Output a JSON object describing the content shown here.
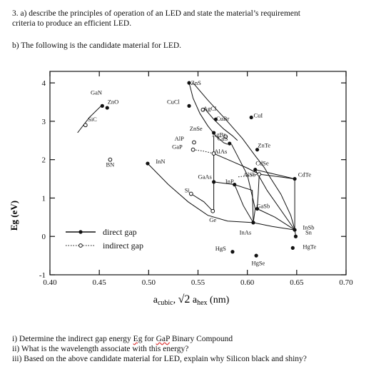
{
  "question": {
    "part_a_line1": "3.  a) describe the principles of operation of an LED and state the material’s requirement",
    "part_a_line2": "criteria to produce an efficient LED.",
    "part_b": "b) The following is the candidate material for LED."
  },
  "subquestions": {
    "i_prefix": "i)   Determine the indirect gap energy ",
    "i_eg": "Eg",
    "i_mid": " for ",
    "i_gap": "GaP",
    "i_suffix": " Binary Compound",
    "ii": "ii)  What is the wavelength associate with this energy?",
    "iii": "iii)  Based on the above candidate material for LED, explain why Silicon black and shiny?"
  },
  "colors": {
    "ink": "#111111",
    "underline": "#dd3333"
  },
  "chart_data": {
    "type": "scatter",
    "ylabel": "Eg (eV)",
    "xlabel_parts": {
      "a": "a",
      "cubic": "cubic",
      "sep": ", ",
      "rad": "√2",
      "a2": " a",
      "hex": "hex",
      "unit": " (nm)"
    },
    "xlim": [
      0.4,
      0.7
    ],
    "ylim": [
      -1,
      4.3
    ],
    "x_ticks": [
      {
        "v": 0.4,
        "label": "0.40"
      },
      {
        "v": 0.45,
        "label": "0.45"
      },
      {
        "v": 0.5,
        "label": "0.50"
      },
      {
        "v": 0.55,
        "label": "0.55"
      },
      {
        "v": 0.6,
        "label": "0.60"
      },
      {
        "v": 0.65,
        "label": "0.65"
      },
      {
        "v": 0.7,
        "label": "0.70"
      }
    ],
    "y_ticks": [
      {
        "v": 4,
        "label": "4"
      },
      {
        "v": 3,
        "label": "3"
      },
      {
        "v": 2,
        "label": "2"
      },
      {
        "v": 1,
        "label": "1"
      },
      {
        "v": 0,
        "label": "0"
      },
      {
        "v": -1,
        "label": "-1"
      }
    ],
    "legend": {
      "position": "bottom-left",
      "direct": "direct gap",
      "indirect": "indirect gap"
    },
    "points": [
      {
        "name": "GaN",
        "x": 0.453,
        "y": 3.4,
        "type": "direct",
        "lx": 0.447,
        "ly": 3.7
      },
      {
        "name": "ZnO",
        "x": 0.458,
        "y": 3.35,
        "type": "direct",
        "lx": 0.464,
        "ly": 3.45
      },
      {
        "name": "SiC",
        "x": 0.436,
        "y": 2.9,
        "type": "indirect",
        "lx": 0.443,
        "ly": 3.0
      },
      {
        "name": "BN",
        "x": 0.461,
        "y": 2.0,
        "type": "indirect",
        "lx": 0.461,
        "ly": 1.82
      },
      {
        "name": "CuCl",
        "x": 0.541,
        "y": 3.4,
        "type": "direct",
        "lx": 0.525,
        "ly": 3.45
      },
      {
        "name": "ZnS",
        "x": 0.541,
        "y": 4.0,
        "type": "direct",
        "lx": 0.548,
        "ly": 3.95
      },
      {
        "name": "AgCl",
        "x": 0.555,
        "y": 3.3,
        "type": "indirect",
        "lx": 0.562,
        "ly": 3.28
      },
      {
        "name": "CuBr",
        "x": 0.568,
        "y": 3.05,
        "type": "direct",
        "lx": 0.575,
        "ly": 3.02
      },
      {
        "name": "CuI",
        "x": 0.604,
        "y": 3.1,
        "type": "direct",
        "lx": 0.611,
        "ly": 3.1
      },
      {
        "name": "ZnSe",
        "x": 0.566,
        "y": 2.7,
        "type": "direct",
        "lx": 0.548,
        "ly": 2.76
      },
      {
        "name": "AgBr",
        "x": 0.578,
        "y": 2.6,
        "type": "indirect",
        "lx": 0.571,
        "ly": 2.6
      },
      {
        "name": "AlP",
        "x": 0.546,
        "y": 2.45,
        "type": "indirect",
        "lx": 0.531,
        "ly": 2.5
      },
      {
        "name": "GaP",
        "x": 0.545,
        "y": 2.26,
        "type": "indirect",
        "lx": 0.529,
        "ly": 2.28
      },
      {
        "name": "CdS",
        "x": 0.582,
        "y": 2.42,
        "type": "direct",
        "lx": 0.575,
        "ly": 2.5
      },
      {
        "name": "AlAs",
        "x": 0.566,
        "y": 2.16,
        "type": "indirect",
        "lx": 0.573,
        "ly": 2.16
      },
      {
        "name": "ZnTe",
        "x": 0.61,
        "y": 2.26,
        "type": "direct",
        "lx": 0.617,
        "ly": 2.32
      },
      {
        "name": "InN",
        "x": 0.499,
        "y": 1.9,
        "type": "direct",
        "lx": 0.512,
        "ly": 1.9
      },
      {
        "name": "CdSe",
        "x": 0.608,
        "y": 1.74,
        "type": "direct",
        "lx": 0.615,
        "ly": 1.85
      },
      {
        "name": "AlSb",
        "x": 0.612,
        "y": 1.62,
        "type": "indirect",
        "lx": 0.602,
        "ly": 1.56
      },
      {
        "name": "CdTe",
        "x": 0.648,
        "y": 1.5,
        "type": "direct",
        "lx": 0.658,
        "ly": 1.56
      },
      {
        "name": "GaAs",
        "x": 0.566,
        "y": 1.42,
        "type": "direct",
        "lx": 0.557,
        "ly": 1.5
      },
      {
        "name": "InP",
        "x": 0.587,
        "y": 1.35,
        "type": "direct",
        "lx": 0.582,
        "ly": 1.38
      },
      {
        "name": "Si",
        "x": 0.543,
        "y": 1.11,
        "type": "indirect",
        "lx": 0.539,
        "ly": 1.15
      },
      {
        "name": "GaSb",
        "x": 0.61,
        "y": 0.72,
        "type": "direct",
        "lx": 0.616,
        "ly": 0.74
      },
      {
        "name": "Ge",
        "x": 0.565,
        "y": 0.66,
        "type": "indirect",
        "lx": 0.565,
        "ly": 0.38
      },
      {
        "name": "InAs",
        "x": 0.606,
        "y": 0.36,
        "type": "direct",
        "lx": 0.598,
        "ly": 0.05
      },
      {
        "name": "InSb",
        "x": 0.648,
        "y": 0.17,
        "type": "direct",
        "lx": 0.662,
        "ly": 0.18
      },
      {
        "name": "Sn",
        "x": 0.649,
        "y": 0.0,
        "type": "direct",
        "lx": 0.662,
        "ly": 0.05
      },
      {
        "name": "HgS",
        "x": 0.585,
        "y": -0.4,
        "type": "direct",
        "lx": 0.573,
        "ly": -0.37
      },
      {
        "name": "HgSe",
        "x": 0.609,
        "y": -0.5,
        "type": "direct",
        "lx": 0.611,
        "ly": -0.75
      },
      {
        "name": "HgTe",
        "x": 0.646,
        "y": -0.3,
        "type": "direct",
        "lx": 0.663,
        "ly": -0.32
      }
    ],
    "curves": [
      {
        "style": "solid",
        "pts": [
          [
            0.428,
            2.7
          ],
          [
            0.44,
            3.1
          ],
          [
            0.451,
            3.38
          ],
          [
            0.453,
            3.42
          ]
        ]
      },
      {
        "style": "solid",
        "pts": [
          [
            0.541,
            4.0
          ],
          [
            0.545,
            3.6
          ],
          [
            0.552,
            3.2
          ],
          [
            0.56,
            2.88
          ],
          [
            0.568,
            2.62
          ],
          [
            0.576,
            2.44
          ],
          [
            0.58,
            2.4
          ]
        ]
      },
      {
        "style": "solid",
        "pts": [
          [
            0.545,
            4.0
          ],
          [
            0.56,
            3.55
          ],
          [
            0.578,
            3.05
          ],
          [
            0.595,
            2.55
          ],
          [
            0.608,
            2.1
          ],
          [
            0.617,
            1.8
          ],
          [
            0.624,
            1.5
          ],
          [
            0.634,
            1.1
          ],
          [
            0.644,
            0.55
          ],
          [
            0.648,
            0.18
          ],
          [
            0.649,
            0.0
          ]
        ]
      },
      {
        "style": "solid",
        "pts": [
          [
            0.556,
            3.35
          ],
          [
            0.566,
            3.05
          ],
          [
            0.576,
            2.8
          ],
          [
            0.585,
            2.62
          ],
          [
            0.59,
            2.5
          ]
        ]
      },
      {
        "style": "solid",
        "pts": [
          [
            0.584,
            2.4
          ],
          [
            0.592,
            2.0
          ],
          [
            0.6,
            1.6
          ],
          [
            0.608,
            0.72
          ],
          [
            0.606,
            0.36
          ]
        ]
      },
      {
        "style": "solid",
        "pts": [
          [
            0.566,
            2.62
          ],
          [
            0.566,
            2.16
          ],
          [
            0.566,
            1.42
          ],
          [
            0.566,
            0.66
          ]
        ]
      },
      {
        "style": "solid",
        "pts": [
          [
            0.566,
            1.42
          ],
          [
            0.587,
            1.35
          ],
          [
            0.605,
            1.2
          ],
          [
            0.606,
            0.36
          ]
        ]
      },
      {
        "style": "solid",
        "pts": [
          [
            0.587,
            1.35
          ],
          [
            0.596,
            0.8
          ],
          [
            0.606,
            0.36
          ]
        ]
      },
      {
        "style": "solid",
        "pts": [
          [
            0.499,
            1.9
          ],
          [
            0.52,
            1.35
          ],
          [
            0.54,
            0.9
          ],
          [
            0.56,
            0.55
          ],
          [
            0.58,
            0.4
          ],
          [
            0.606,
            0.36
          ]
        ]
      },
      {
        "style": "solid",
        "pts": [
          [
            0.612,
            1.62
          ],
          [
            0.611,
            1.1
          ],
          [
            0.61,
            0.72
          ]
        ]
      },
      {
        "style": "solid",
        "pts": [
          [
            0.61,
            0.72
          ],
          [
            0.628,
            0.5
          ],
          [
            0.648,
            0.17
          ]
        ]
      },
      {
        "style": "solid",
        "pts": [
          [
            0.606,
            0.36
          ],
          [
            0.625,
            0.26
          ],
          [
            0.648,
            0.17
          ]
        ]
      },
      {
        "style": "solid",
        "pts": [
          [
            0.608,
            1.74
          ],
          [
            0.628,
            1.62
          ],
          [
            0.648,
            1.5
          ]
        ]
      },
      {
        "style": "solid",
        "pts": [
          [
            0.608,
            1.74
          ],
          [
            0.62,
            1.2
          ],
          [
            0.648,
            0.17
          ]
        ]
      },
      {
        "style": "solid",
        "pts": [
          [
            0.612,
            1.62
          ],
          [
            0.63,
            1.56
          ],
          [
            0.648,
            1.5
          ]
        ]
      },
      {
        "style": "solid",
        "pts": [
          [
            0.566,
            2.16
          ],
          [
            0.585,
            1.95
          ],
          [
            0.6,
            1.78
          ],
          [
            0.612,
            1.62
          ]
        ]
      },
      {
        "style": "solid",
        "pts": [
          [
            0.648,
            1.5
          ],
          [
            0.648,
            0.17
          ]
        ]
      },
      {
        "style": "dotted",
        "pts": [
          [
            0.545,
            2.26
          ],
          [
            0.556,
            2.22
          ],
          [
            0.566,
            2.16
          ]
        ]
      },
      {
        "style": "dotted",
        "pts": [
          [
            0.612,
            1.62
          ],
          [
            0.6,
            1.58
          ],
          [
            0.59,
            1.55
          ]
        ]
      },
      {
        "style": "solid",
        "pts": [
          [
            0.543,
            1.11
          ],
          [
            0.556,
            0.9
          ],
          [
            0.565,
            0.66
          ]
        ]
      }
    ]
  }
}
